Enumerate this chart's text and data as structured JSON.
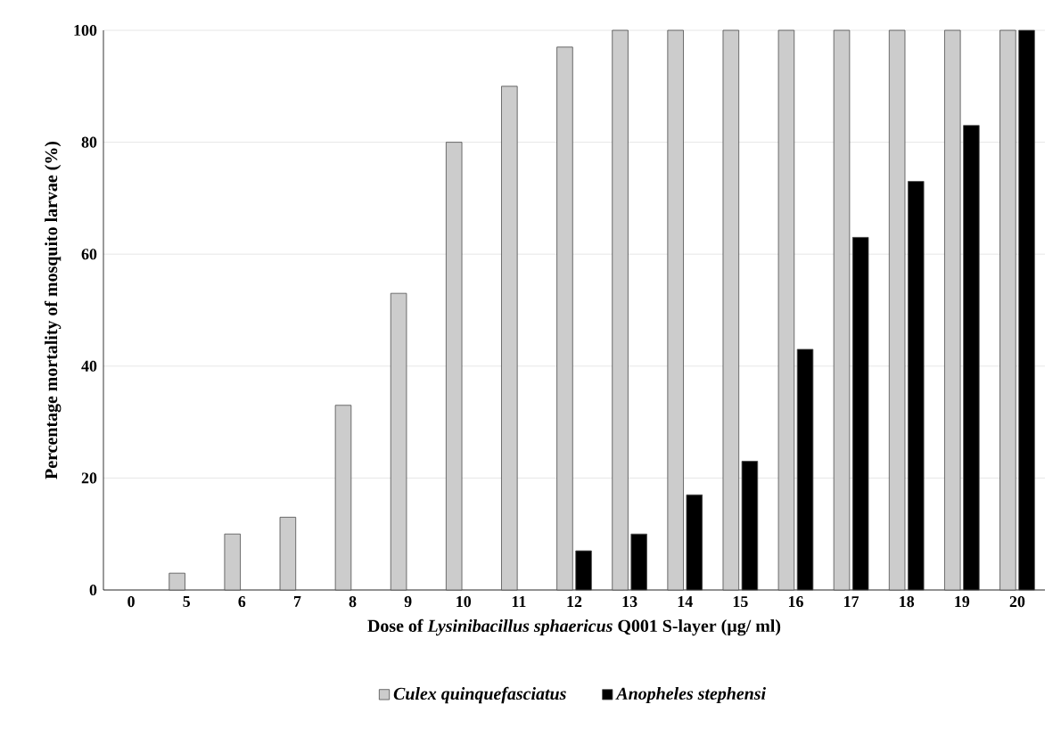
{
  "chart_data": {
    "type": "bar",
    "xlabel": "Dose of *Lysinibacillus sphaericus* Q001 S-layer (µg/ ml)",
    "ylabel": "Percentage mortality of mosquito larvae (%)",
    "categories": [
      "0",
      "5",
      "6",
      "7",
      "8",
      "9",
      "10",
      "11",
      "12",
      "13",
      "14",
      "15",
      "16",
      "17",
      "18",
      "19",
      "20"
    ],
    "series": [
      {
        "name": "Culex quinquefasciatus",
        "color": "#cccccc",
        "values": [
          0,
          3,
          10,
          13,
          33,
          53,
          80,
          90,
          97,
          100,
          100,
          100,
          100,
          100,
          100,
          100,
          100
        ]
      },
      {
        "name": "Anopheles stephensi",
        "color": "#000000",
        "values": [
          0,
          0,
          0,
          0,
          0,
          0,
          0,
          0,
          7,
          10,
          17,
          23,
          43,
          63,
          73,
          83,
          100
        ]
      }
    ],
    "ylim": [
      0,
      100
    ],
    "yticks": [
      0,
      20,
      40,
      60,
      80,
      100
    ],
    "grid": "y",
    "legend": "bottom"
  }
}
